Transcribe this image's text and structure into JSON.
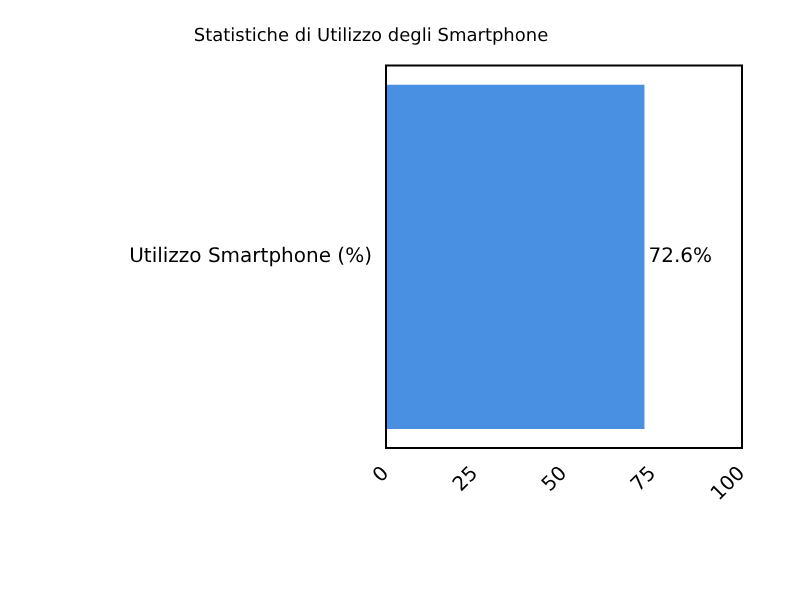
{
  "chart_data": {
    "type": "bar",
    "title": "Statistiche di Utilizzo degli Smartphone",
    "orientation": "horizontal",
    "categories": [
      "Utilizzo Smartphone (%)"
    ],
    "values": [
      72.6
    ],
    "color": "#4a90e2",
    "value_labels": [
      "72.6%"
    ],
    "xlim": [
      0,
      100
    ],
    "xticks": [
      0,
      25,
      50,
      75,
      100
    ],
    "grid": false,
    "legend": false
  }
}
